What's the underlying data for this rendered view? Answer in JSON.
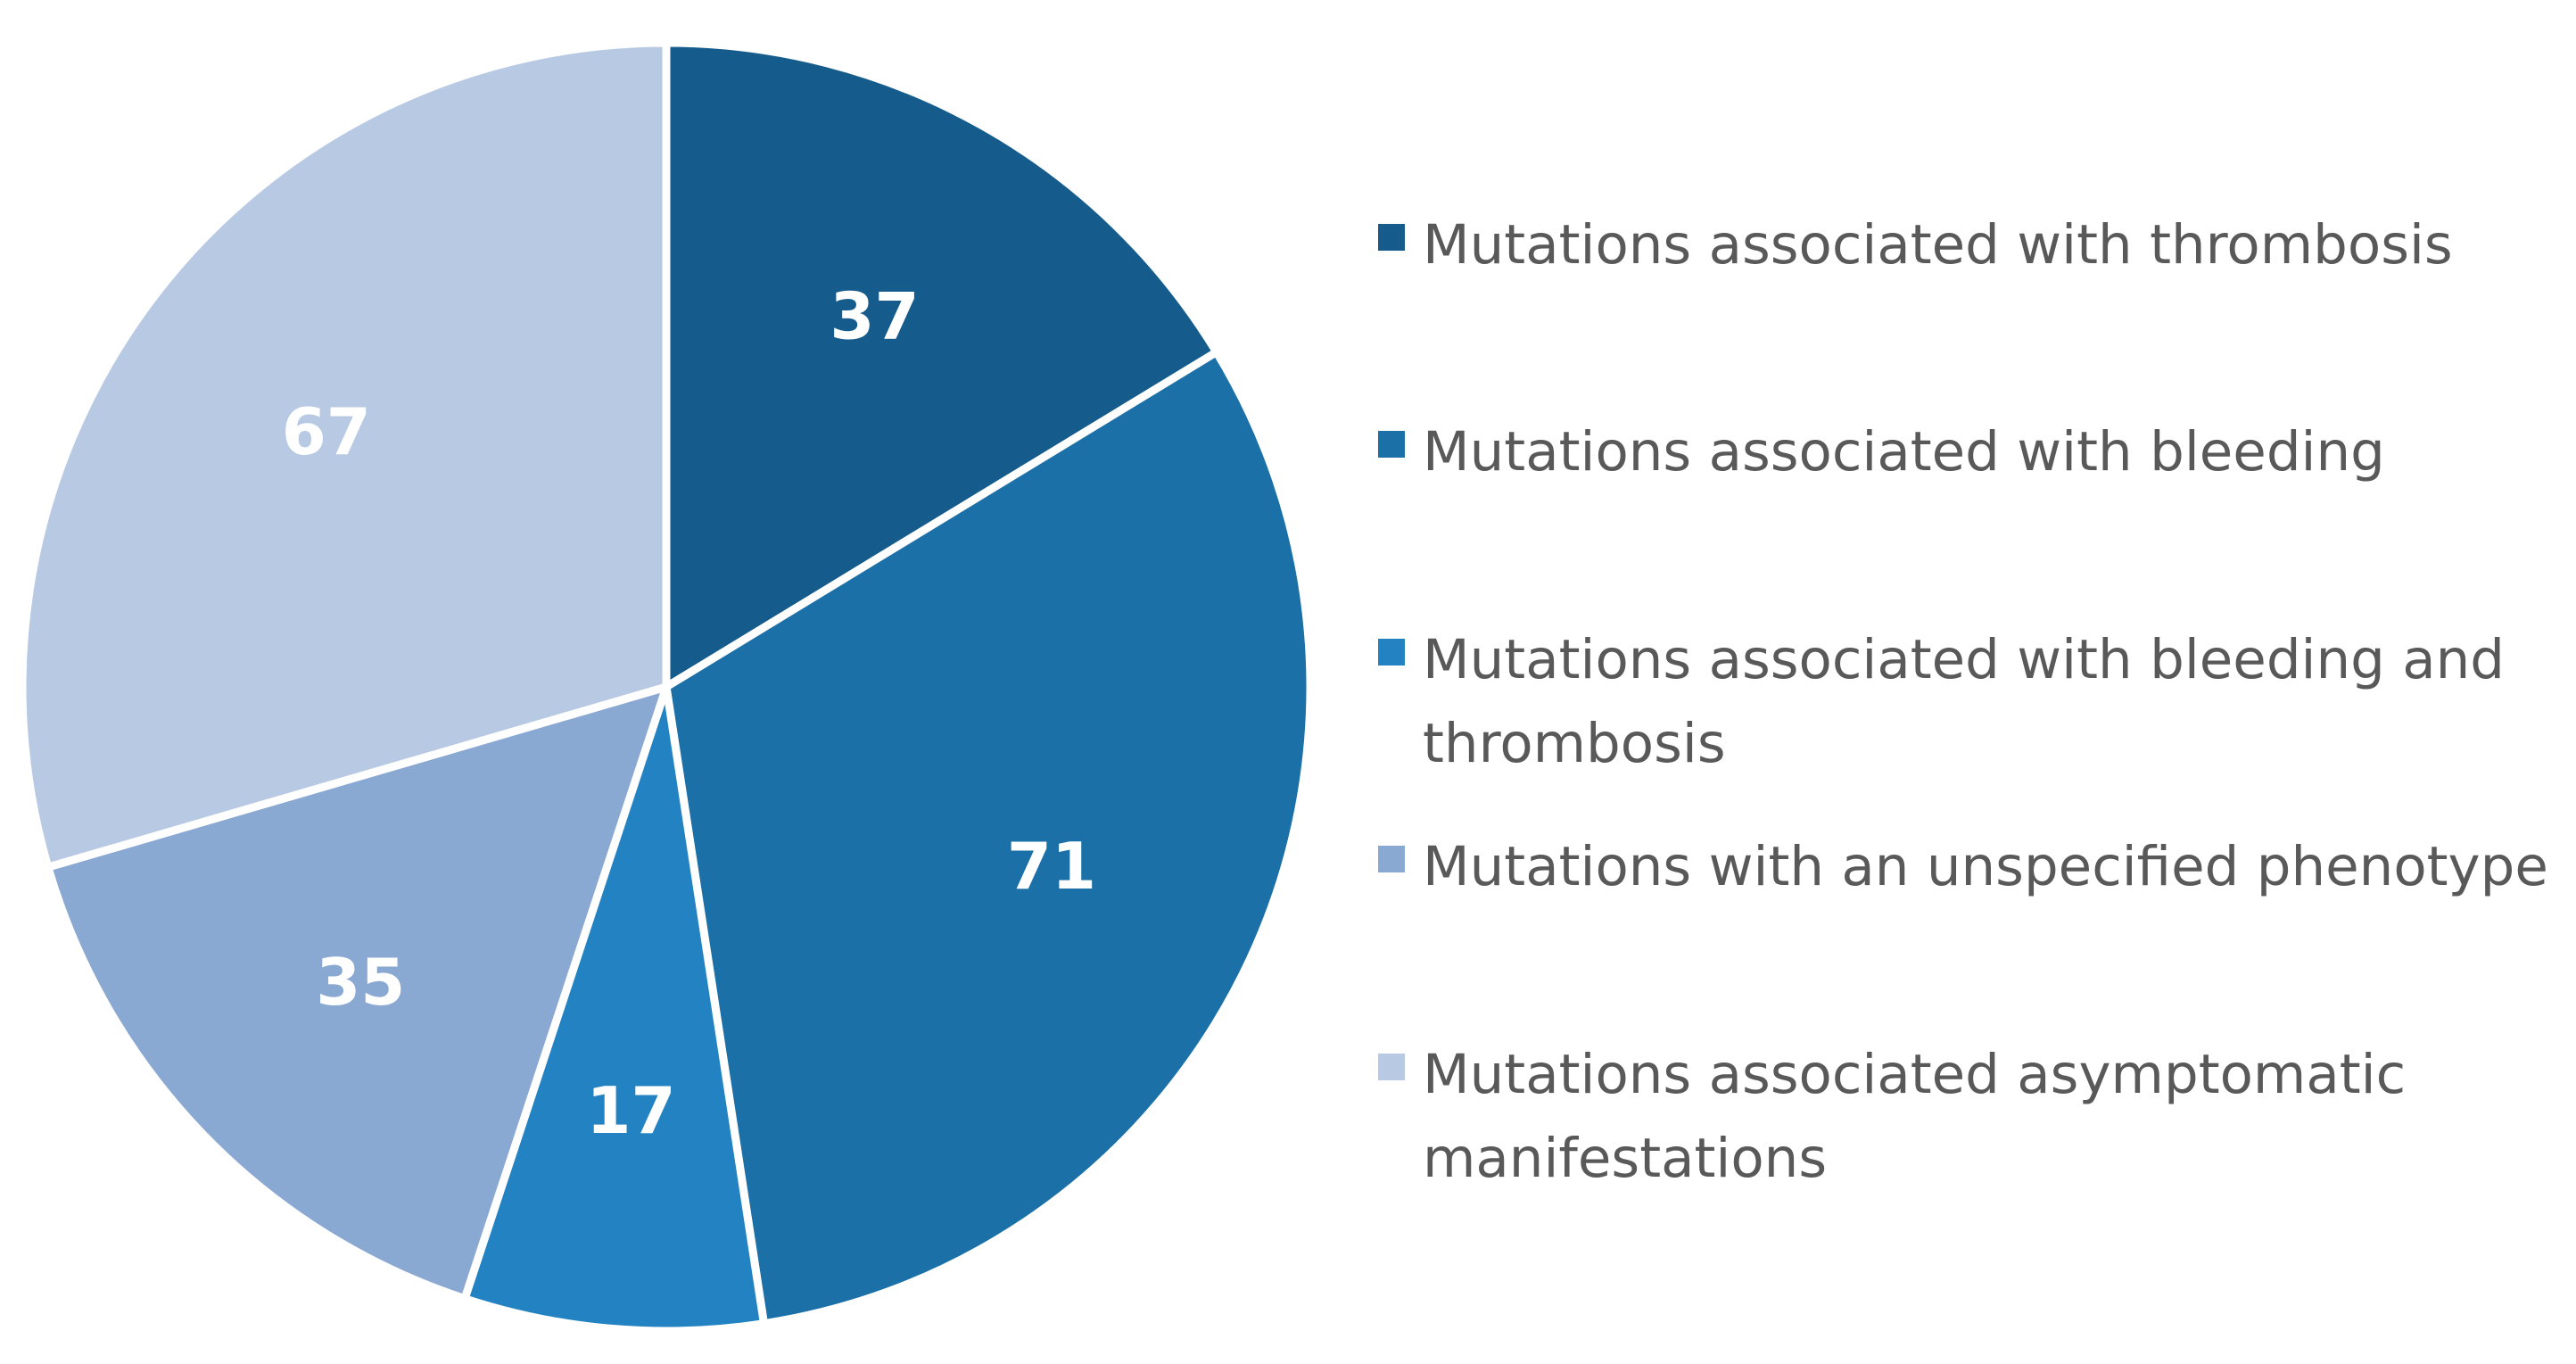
{
  "chart_data": {
    "type": "pie",
    "title": "",
    "categories": [
      "Mutations associated with thrombosis",
      "Mutations associated with bleeding",
      "Mutations associated with bleeding and thrombosis",
      "Mutations with an unspecified phenotype",
      "Mutations associated asymptomatic manifestations"
    ],
    "values": [
      37,
      71,
      17,
      35,
      67
    ],
    "colors": [
      "#155c8c",
      "#1b70a7",
      "#2383c2",
      "#8aa9d2",
      "#b8c9e3"
    ],
    "legend": {
      "placement": "right",
      "entries": [
        {
          "lines": [
            "Mutations associated with thrombosis"
          ]
        },
        {
          "lines": [
            "Mutations associated with bleeding"
          ]
        },
        {
          "lines": [
            "Mutations associated with bleeding and",
            "thrombosis"
          ]
        },
        {
          "lines": [
            "Mutations with an unspecified phenotype"
          ]
        },
        {
          "lines": [
            "Mutations associated asymptomatic",
            "manifestations"
          ]
        }
      ]
    },
    "data_labels_shown": true,
    "start_angle": "12 o'clock",
    "direction": "clockwise"
  }
}
